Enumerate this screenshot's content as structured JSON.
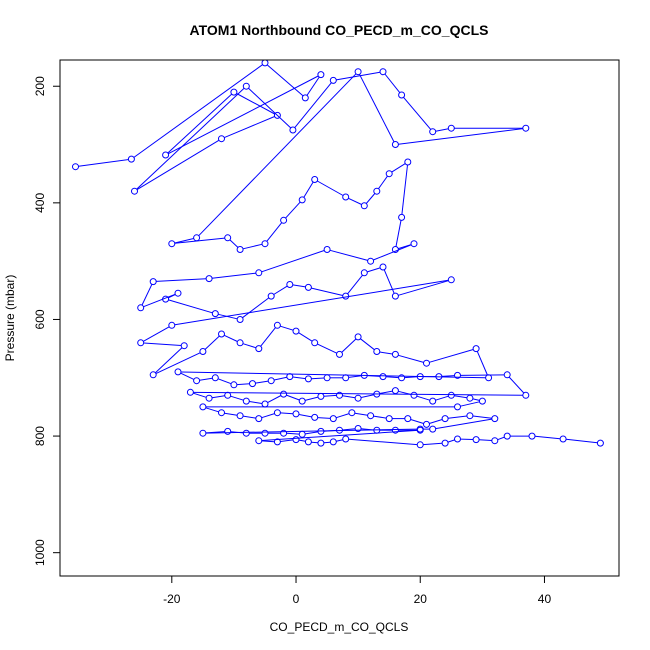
{
  "chart_data": {
    "type": "line",
    "title": "ATOM1 Northbound CO_PECD_m_CO_QCLS",
    "xlabel": "CO_PECD_m_CO_QCLS",
    "ylabel": "Pressure (mbar)",
    "xlim": [
      -38,
      52
    ],
    "ylim": [
      1040,
      155
    ],
    "y_inverted": true,
    "grid": false,
    "x_ticks": [
      -20,
      0,
      20,
      40
    ],
    "y_ticks": [
      200,
      400,
      600,
      800,
      1000
    ],
    "colors": {
      "series": "#0000ff",
      "axes": "#000000"
    },
    "series": [
      {
        "marker": "open-circle",
        "points": [
          [
            -35.5,
            338
          ],
          [
            -26.5,
            325
          ],
          [
            -5,
            160
          ],
          [
            1.5,
            220
          ],
          [
            4,
            180
          ],
          [
            -21,
            318
          ],
          [
            -10,
            210
          ],
          [
            -3,
            250
          ],
          [
            -12,
            290
          ],
          [
            -26,
            380
          ],
          [
            -8,
            200
          ],
          [
            -0.5,
            275
          ],
          [
            6,
            190
          ],
          [
            14,
            175
          ],
          [
            17,
            215
          ],
          [
            22,
            278
          ],
          [
            25,
            272
          ],
          [
            37,
            272
          ],
          [
            16,
            300
          ],
          [
            10,
            175
          ],
          [
            -16,
            460
          ],
          [
            -20,
            470
          ],
          [
            -11,
            460
          ],
          [
            -9,
            480
          ],
          [
            -5,
            470
          ],
          [
            -2,
            430
          ],
          [
            1,
            395
          ],
          [
            3,
            360
          ],
          [
            8,
            390
          ],
          [
            11,
            405
          ],
          [
            13,
            380
          ],
          [
            15,
            350
          ],
          [
            18,
            330
          ],
          [
            17,
            425
          ],
          [
            16,
            480
          ],
          [
            19,
            470
          ],
          [
            12,
            500
          ],
          [
            5,
            480
          ],
          [
            -6,
            520
          ],
          [
            -14,
            530
          ],
          [
            -23,
            535
          ],
          [
            -25,
            580
          ],
          [
            -19,
            555
          ],
          [
            -21,
            565
          ],
          [
            -13,
            590
          ],
          [
            -9,
            600
          ],
          [
            -4,
            560
          ],
          [
            -1,
            540
          ],
          [
            2,
            545
          ],
          [
            8,
            560
          ],
          [
            11,
            520
          ],
          [
            14,
            510
          ],
          [
            16,
            560
          ],
          [
            25,
            532
          ],
          [
            -20,
            610
          ],
          [
            -25,
            640
          ],
          [
            -18,
            645
          ],
          [
            -23,
            695
          ],
          [
            -15,
            655
          ],
          [
            -12,
            625
          ],
          [
            -9,
            640
          ],
          [
            -6,
            650
          ],
          [
            -3,
            610
          ],
          [
            0,
            620
          ],
          [
            3,
            640
          ],
          [
            7,
            660
          ],
          [
            10,
            630
          ],
          [
            13,
            655
          ],
          [
            16,
            660
          ],
          [
            21,
            675
          ],
          [
            29,
            650
          ],
          [
            31,
            700
          ],
          [
            -19,
            690
          ],
          [
            -16,
            705
          ],
          [
            -13,
            700
          ],
          [
            -10,
            712
          ],
          [
            -7,
            710
          ],
          [
            -4,
            705
          ],
          [
            -1,
            698
          ],
          [
            2,
            702
          ],
          [
            5,
            700
          ],
          [
            8,
            700
          ],
          [
            11,
            696
          ],
          [
            14,
            698
          ],
          [
            17,
            700
          ],
          [
            20,
            698
          ],
          [
            23,
            698
          ],
          [
            26,
            696
          ],
          [
            34,
            695
          ],
          [
            37,
            730
          ],
          [
            -17,
            725
          ],
          [
            -14,
            735
          ],
          [
            -11,
            730
          ],
          [
            -8,
            740
          ],
          [
            -5,
            745
          ],
          [
            -2,
            728
          ],
          [
            1,
            740
          ],
          [
            4,
            732
          ],
          [
            7,
            730
          ],
          [
            10,
            735
          ],
          [
            13,
            728
          ],
          [
            16,
            722
          ],
          [
            19,
            730
          ],
          [
            22,
            740
          ],
          [
            25,
            730
          ],
          [
            28,
            735
          ],
          [
            30,
            740
          ],
          [
            26,
            750
          ],
          [
            -15,
            750
          ],
          [
            -12,
            760
          ],
          [
            -9,
            765
          ],
          [
            -6,
            770
          ],
          [
            -3,
            760
          ],
          [
            0,
            762
          ],
          [
            3,
            768
          ],
          [
            6,
            770
          ],
          [
            9,
            760
          ],
          [
            12,
            765
          ],
          [
            15,
            770
          ],
          [
            18,
            770
          ],
          [
            21,
            780
          ],
          [
            24,
            770
          ],
          [
            28,
            765
          ],
          [
            32,
            770
          ],
          [
            22,
            788
          ],
          [
            20,
            788
          ],
          [
            -15,
            795
          ],
          [
            -11,
            792
          ],
          [
            -8,
            795
          ],
          [
            -5,
            795
          ],
          [
            -2,
            795
          ],
          [
            1,
            797
          ],
          [
            4,
            792
          ],
          [
            7,
            790
          ],
          [
            10,
            787
          ],
          [
            13,
            790
          ],
          [
            16,
            790
          ],
          [
            20,
            790
          ],
          [
            -6,
            808
          ],
          [
            -3,
            810
          ],
          [
            0,
            806
          ],
          [
            2,
            810
          ],
          [
            4,
            812
          ],
          [
            6,
            810
          ],
          [
            8,
            805
          ],
          [
            20,
            815
          ],
          [
            24,
            812
          ],
          [
            26,
            805
          ],
          [
            29,
            806
          ],
          [
            32,
            808
          ],
          [
            34,
            800
          ],
          [
            38,
            800
          ],
          [
            43,
            805
          ],
          [
            49,
            812
          ]
        ]
      }
    ]
  }
}
